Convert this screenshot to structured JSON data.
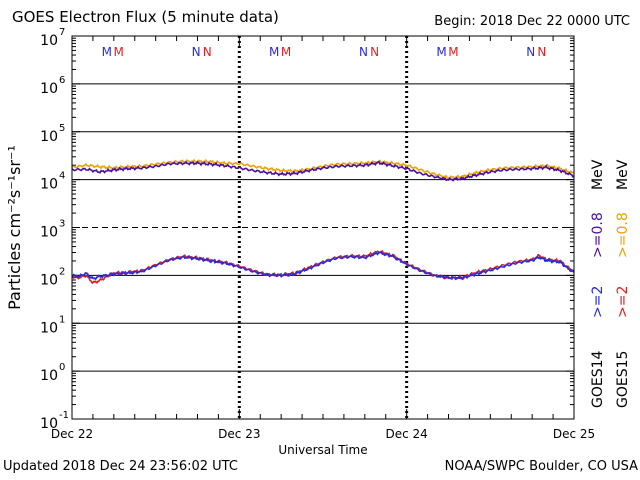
{
  "header": {
    "title": "GOES Electron Flux (5 minute data)",
    "begin": "Begin: 2018 Dec 22 0000 UTC"
  },
  "footer": {
    "updated": "Updated 2018 Dec 24 23:56:02 UTC",
    "credit": "NOAA/SWPC Boulder, CO USA"
  },
  "chart_data": {
    "type": "line",
    "title": "GOES Electron Flux (5 minute data)",
    "xlabel": "Universal Time",
    "ylabel": "Particles cm⁻²s⁻¹sr⁻¹",
    "yscale": "log",
    "ylim": [
      0.1,
      10000000
    ],
    "xlim_hours": [
      0,
      72
    ],
    "y_ticks": [
      {
        "value": 0.1,
        "base": "10",
        "exp": "-1"
      },
      {
        "value": 1,
        "base": "10",
        "exp": "0"
      },
      {
        "value": 10,
        "base": "10",
        "exp": "1"
      },
      {
        "value": 100,
        "base": "10",
        "exp": "2"
      },
      {
        "value": 1000,
        "base": "10",
        "exp": "3"
      },
      {
        "value": 10000,
        "base": "10",
        "exp": "4"
      },
      {
        "value": 100000,
        "base": "10",
        "exp": "5"
      },
      {
        "value": 1000000,
        "base": "10",
        "exp": "6"
      },
      {
        "value": 10000000,
        "base": "10",
        "exp": "7"
      }
    ],
    "x_ticks": [
      {
        "hour": 0,
        "label": "Dec 22"
      },
      {
        "hour": 24,
        "label": "Dec 23"
      },
      {
        "hour": 48,
        "label": "Dec 24"
      },
      {
        "hour": 72,
        "label": "Dec 25"
      }
    ],
    "reference_line_value": 1000,
    "markers": [
      {
        "hour": 5.0,
        "label": "M",
        "color": "#2b2bd6"
      },
      {
        "hour": 6.7,
        "label": "M",
        "color": "#e02020"
      },
      {
        "hour": 17.8,
        "label": "N",
        "color": "#2b2bd6"
      },
      {
        "hour": 19.4,
        "label": "N",
        "color": "#e02020"
      },
      {
        "hour": 29.0,
        "label": "M",
        "color": "#2b2bd6"
      },
      {
        "hour": 30.7,
        "label": "M",
        "color": "#e02020"
      },
      {
        "hour": 41.8,
        "label": "N",
        "color": "#2b2bd6"
      },
      {
        "hour": 43.4,
        "label": "N",
        "color": "#e02020"
      },
      {
        "hour": 53.0,
        "label": "M",
        "color": "#2b2bd6"
      },
      {
        "hour": 54.7,
        "label": "M",
        "color": "#e02020"
      },
      {
        "hour": 65.8,
        "label": "N",
        "color": "#2b2bd6"
      },
      {
        "hour": 67.4,
        "label": "N",
        "color": "#e02020"
      }
    ],
    "series": [
      {
        "name": "GOES15 >=0.8 MeV",
        "color": "#f0a000",
        "x": [
          0,
          2,
          4,
          6,
          8,
          10,
          12,
          14,
          16,
          18,
          20,
          22,
          24,
          26,
          28,
          30,
          32,
          34,
          36,
          38,
          40,
          42,
          44,
          46,
          48,
          50,
          52,
          54,
          56,
          58,
          60,
          62,
          64,
          66,
          68,
          70,
          72
        ],
        "y": [
          18000,
          20000,
          18500,
          17500,
          18500,
          19000,
          21000,
          23000,
          24000,
          24000,
          23500,
          22000,
          21500,
          19000,
          17000,
          15500,
          15000,
          16500,
          19000,
          21000,
          21500,
          22000,
          23500,
          22000,
          20000,
          16000,
          13000,
          11000,
          11500,
          14000,
          16000,
          17500,
          18000,
          18500,
          19500,
          17000,
          13500
        ]
      },
      {
        "name": "GOES14 >=0.8 MeV",
        "color": "#4b0fa0",
        "x": [
          0,
          2,
          4,
          6,
          8,
          10,
          12,
          14,
          16,
          18,
          20,
          22,
          24,
          26,
          28,
          30,
          32,
          34,
          36,
          38,
          40,
          42,
          44,
          46,
          48,
          50,
          52,
          54,
          56,
          58,
          60,
          62,
          64,
          66,
          68,
          70,
          72
        ],
        "y": [
          16000,
          16500,
          14500,
          16000,
          17000,
          17500,
          19000,
          21500,
          22000,
          22000,
          21000,
          19500,
          17500,
          15500,
          14000,
          13000,
          13500,
          15500,
          17500,
          19000,
          19500,
          20000,
          22500,
          19500,
          17000,
          13500,
          11500,
          10000,
          10500,
          12500,
          14500,
          16000,
          16500,
          17000,
          18000,
          15500,
          12000
        ]
      },
      {
        "name": "GOES15 >=2 MeV",
        "color": "#e02020",
        "x": [
          0,
          1,
          2,
          3,
          4,
          5,
          6,
          8,
          10,
          12,
          14,
          16,
          18,
          20,
          22,
          24,
          26,
          28,
          30,
          32,
          34,
          36,
          38,
          40,
          42,
          44,
          46,
          48,
          50,
          52,
          54,
          56,
          58,
          60,
          62,
          64,
          66,
          67,
          68,
          70,
          71,
          72
        ],
        "y": [
          95,
          90,
          100,
          70,
          78,
          95,
          110,
          115,
          125,
          165,
          215,
          250,
          230,
          205,
          185,
          155,
          125,
          105,
          102,
          110,
          145,
          190,
          240,
          255,
          250,
          315,
          260,
          175,
          130,
          100,
          88,
          90,
          115,
          135,
          165,
          195,
          215,
          260,
          215,
          200,
          150,
          120
        ]
      },
      {
        "name": "GOES14 >=2 MeV",
        "color": "#2b2bd6",
        "x": [
          0,
          1,
          2,
          3,
          4,
          5,
          6,
          8,
          10,
          12,
          14,
          16,
          18,
          20,
          22,
          24,
          26,
          28,
          30,
          32,
          34,
          36,
          38,
          40,
          42,
          44,
          46,
          48,
          50,
          52,
          54,
          56,
          58,
          60,
          62,
          64,
          66,
          67,
          68,
          70,
          71,
          72
        ],
        "y": [
          100,
          95,
          110,
          85,
          95,
          100,
          108,
          112,
          120,
          160,
          210,
          240,
          225,
          200,
          180,
          150,
          120,
          102,
          100,
          108,
          140,
          185,
          230,
          245,
          235,
          300,
          250,
          170,
          125,
          98,
          90,
          88,
          108,
          128,
          155,
          185,
          205,
          240,
          205,
          190,
          145,
          115
        ]
      }
    ],
    "legend": {
      "placement": "right",
      "satellites": [
        {
          "label": "GOES14"
        },
        {
          "label": "GOES15"
        }
      ],
      "entries": [
        {
          "label": ">=2",
          "color": "#2b2bd6"
        },
        {
          "label": ">=0.8",
          "color": "#4b0fa0"
        },
        {
          "label": ">=2",
          "color": "#e02020"
        },
        {
          "label": ">=0.8",
          "color": "#f0a000"
        }
      ],
      "unit": "MeV"
    }
  }
}
